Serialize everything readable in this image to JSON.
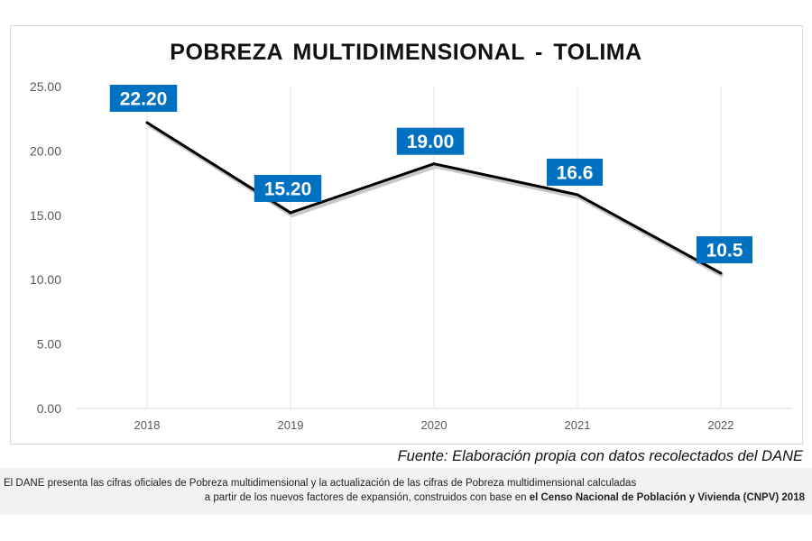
{
  "chart_data": {
    "type": "line",
    "title": "POBREZA  MULTIDIMENSIONAL  - TOLIMA",
    "categories": [
      "2018",
      "2019",
      "2020",
      "2021",
      "2022"
    ],
    "series": [
      {
        "values": [
          22.2,
          15.2,
          19.0,
          16.6,
          10.5
        ],
        "data_labels": [
          "22.20",
          "15.20",
          "19.00",
          "16.6",
          "10.5"
        ],
        "color": "#000000"
      }
    ],
    "ylim": [
      0,
      25
    ],
    "yticks": [
      "0.00",
      "5.00",
      "10.00",
      "15.00",
      "20.00",
      "25.00"
    ],
    "xlabel": "",
    "ylabel": "",
    "grid": "vertical",
    "label_color": "#0070c0"
  },
  "source": "Fuente: Elaboración propia con datos recolectados del DANE",
  "footnote": {
    "line1": "El DANE presenta las cifras oficiales de Pobreza multidimensional y la actualización de las cifras de Pobreza multidimensional calculadas",
    "line2_normal": "a partir de los nuevos factores de expansión, construidos con base en ",
    "line2_bold": "el Censo Nacional de Población y Vivienda (CNPV) 2018"
  }
}
